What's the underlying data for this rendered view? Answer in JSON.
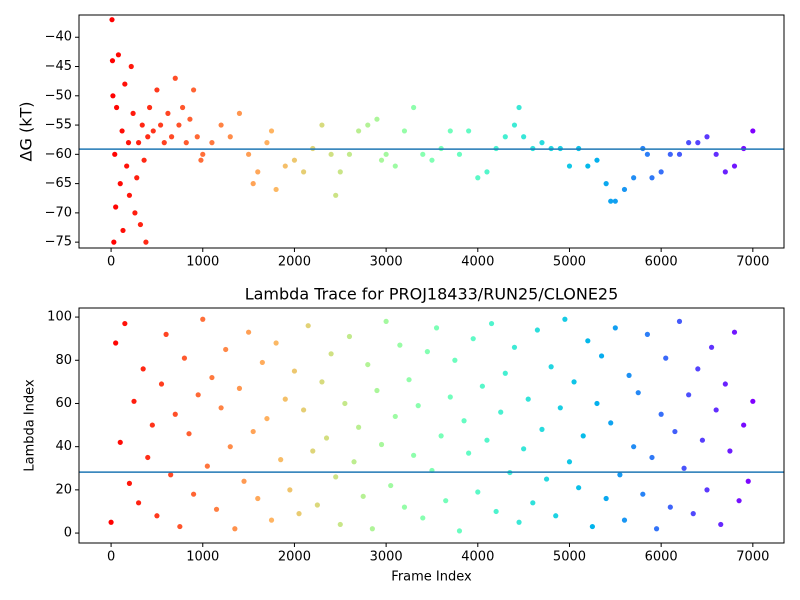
{
  "chart_data": [
    {
      "type": "scatter",
      "ylabel": "ΔG (kT)",
      "colormap": "rainbow_r",
      "hline": -59.1,
      "hline_color": "#1f77b4",
      "xlim": [
        -350,
        7340
      ],
      "ylim": [
        -76,
        -36.2
      ],
      "xticks": [
        0,
        1000,
        2000,
        3000,
        4000,
        5000,
        6000,
        7000
      ],
      "yticks": [
        {
          "value": -40,
          "label": "−40"
        },
        {
          "value": -45,
          "label": "−45"
        },
        {
          "value": -50,
          "label": "−50"
        },
        {
          "value": -55,
          "label": "−55"
        },
        {
          "value": -60,
          "label": "−60"
        },
        {
          "value": -65,
          "label": "−65"
        },
        {
          "value": -70,
          "label": "−70"
        },
        {
          "value": -75,
          "label": "−75"
        }
      ],
      "x": [
        10,
        20,
        30,
        15,
        40,
        50,
        60,
        80,
        100,
        120,
        130,
        150,
        170,
        190,
        200,
        220,
        240,
        260,
        280,
        300,
        320,
        340,
        360,
        380,
        400,
        420,
        460,
        500,
        540,
        580,
        620,
        660,
        700,
        740,
        780,
        820,
        860,
        900,
        940,
        980,
        1000,
        1100,
        1200,
        1300,
        1400,
        1500,
        1550,
        1600,
        1700,
        1750,
        1800,
        1900,
        2000,
        2100,
        2200,
        2300,
        2400,
        2450,
        2500,
        2600,
        2700,
        2800,
        2900,
        2950,
        3000,
        3100,
        3200,
        3300,
        3400,
        3500,
        3600,
        3700,
        3800,
        3900,
        4000,
        4100,
        4200,
        4300,
        4400,
        4450,
        4500,
        4600,
        4700,
        4800,
        4900,
        5000,
        5100,
        5200,
        5300,
        5400,
        5450,
        5500,
        5600,
        5700,
        5800,
        5850,
        5900,
        6000,
        6100,
        6200,
        6300,
        6400,
        6500,
        6600,
        6700,
        6800,
        6900,
        7000
      ],
      "y": [
        -37,
        -50,
        -75,
        -44,
        -60,
        -69,
        -52,
        -43,
        -65,
        -56,
        -73,
        -48,
        -62,
        -58,
        -67,
        -45,
        -53,
        -70,
        -64,
        -58,
        -72,
        -55,
        -61,
        -75,
        -57,
        -52,
        -56,
        -49,
        -55,
        -58,
        -53,
        -57,
        -47,
        -55,
        -52,
        -58,
        -54,
        -49,
        -57,
        -61,
        -60,
        -58,
        -55,
        -57,
        -53,
        -60,
        -65,
        -63,
        -58,
        -56,
        -66,
        -62,
        -61,
        -63,
        -59,
        -55,
        -60,
        -67,
        -63,
        -60,
        -56,
        -55,
        -54,
        -61,
        -60,
        -62,
        -56,
        -52,
        -60,
        -61,
        -59,
        -56,
        -60,
        -56,
        -64,
        -63,
        -59,
        -57,
        -55,
        -52,
        -57,
        -59,
        -58,
        -59,
        -59,
        -62,
        -59,
        -62,
        -61,
        -65,
        -68,
        -68,
        -66,
        -64,
        -59,
        -60,
        -64,
        -63,
        -60,
        -60,
        -58,
        -58,
        -57,
        -60,
        -63,
        -62,
        -59,
        -56
      ]
    },
    {
      "type": "scatter",
      "title": "Lambda Trace for PROJ18433/RUN25/CLONE25",
      "xlabel": "Frame Index",
      "ylabel": "Lambda Index",
      "colormap": "rainbow_r",
      "hline": 28.2,
      "hline_color": "#1f77b4",
      "xlim": [
        -350,
        7340
      ],
      "ylim": [
        -4.6,
        104.2
      ],
      "xticks": [
        0,
        1000,
        2000,
        3000,
        4000,
        5000,
        6000,
        7000
      ],
      "yticks": [
        0,
        20,
        40,
        60,
        80,
        100
      ],
      "x": [
        0,
        50,
        100,
        150,
        200,
        250,
        300,
        350,
        400,
        450,
        500,
        550,
        600,
        650,
        700,
        750,
        800,
        850,
        900,
        950,
        1000,
        1050,
        1100,
        1150,
        1200,
        1250,
        1300,
        1350,
        1400,
        1450,
        1500,
        1550,
        1600,
        1650,
        1700,
        1750,
        1800,
        1850,
        1900,
        1950,
        2000,
        2050,
        2100,
        2150,
        2200,
        2250,
        2300,
        2350,
        2400,
        2450,
        2500,
        2550,
        2600,
        2650,
        2700,
        2750,
        2800,
        2850,
        2900,
        2950,
        3000,
        3050,
        3100,
        3150,
        3200,
        3250,
        3300,
        3350,
        3400,
        3450,
        3500,
        3550,
        3600,
        3650,
        3700,
        3750,
        3800,
        3850,
        3900,
        3950,
        4000,
        4050,
        4100,
        4150,
        4200,
        4250,
        4300,
        4350,
        4400,
        4450,
        4500,
        4550,
        4600,
        4650,
        4700,
        4750,
        4800,
        4850,
        4900,
        4950,
        5000,
        5050,
        5100,
        5150,
        5200,
        5250,
        5300,
        5350,
        5400,
        5450,
        5500,
        5550,
        5600,
        5650,
        5700,
        5750,
        5800,
        5850,
        5900,
        5950,
        6000,
        6050,
        6100,
        6150,
        6200,
        6250,
        6300,
        6350,
        6400,
        6450,
        6500,
        6550,
        6600,
        6650,
        6700,
        6750,
        6800,
        6850,
        6900,
        6950,
        7000
      ],
      "y": [
        5,
        88,
        42,
        97,
        23,
        61,
        14,
        76,
        35,
        50,
        8,
        69,
        92,
        27,
        55,
        3,
        81,
        46,
        18,
        64,
        99,
        31,
        72,
        11,
        58,
        85,
        40,
        2,
        67,
        24,
        93,
        47,
        16,
        79,
        53,
        6,
        88,
        34,
        62,
        20,
        75,
        9,
        57,
        96,
        38,
        13,
        70,
        44,
        83,
        26,
        4,
        60,
        91,
        33,
        49,
        17,
        78,
        2,
        66,
        41,
        98,
        22,
        54,
        87,
        12,
        71,
        36,
        59,
        7,
        84,
        29,
        95,
        45,
        15,
        63,
        80,
        1,
        52,
        37,
        90,
        19,
        68,
        43,
        97,
        10,
        56,
        74,
        28,
        86,
        5,
        39,
        62,
        14,
        94,
        48,
        25,
        77,
        8,
        58,
        99,
        33,
        70,
        21,
        45,
        89,
        3,
        60,
        82,
        16,
        51,
        95,
        27,
        6,
        73,
        40,
        65,
        18,
        92,
        35,
        2,
        55,
        81,
        12,
        47,
        98,
        30,
        64,
        9,
        76,
        43,
        20,
        86,
        57,
        4,
        69,
        38,
        93,
        15,
        50,
        24,
        61
      ]
    }
  ]
}
